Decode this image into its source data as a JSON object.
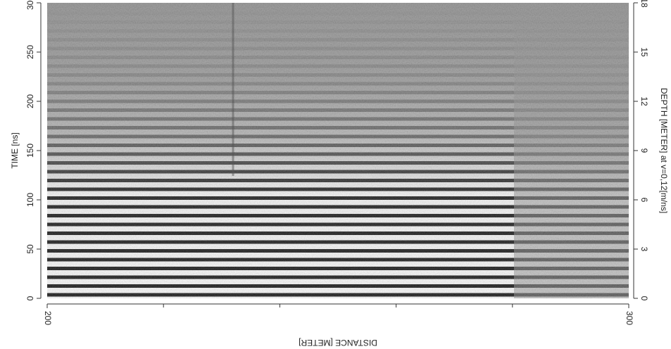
{
  "chart_data": {
    "type": "radargram",
    "xlabel": "DISTANCE [METER]",
    "ylabel": "TIME [ns]",
    "y2label": "DEPTH [METER] at v=0,12[m/ns]",
    "xlim": [
      200,
      300
    ],
    "xticks": [
      200,
      300
    ],
    "xminor_ticks": [
      220,
      240,
      260,
      280
    ],
    "ylim": [
      0,
      300
    ],
    "yticks": [
      0,
      50,
      100,
      150,
      200,
      250,
      300
    ],
    "y2lim": [
      0,
      18
    ],
    "y2ticks": [
      0,
      3,
      6,
      9,
      12,
      15,
      18
    ],
    "colormap": "gray"
  }
}
